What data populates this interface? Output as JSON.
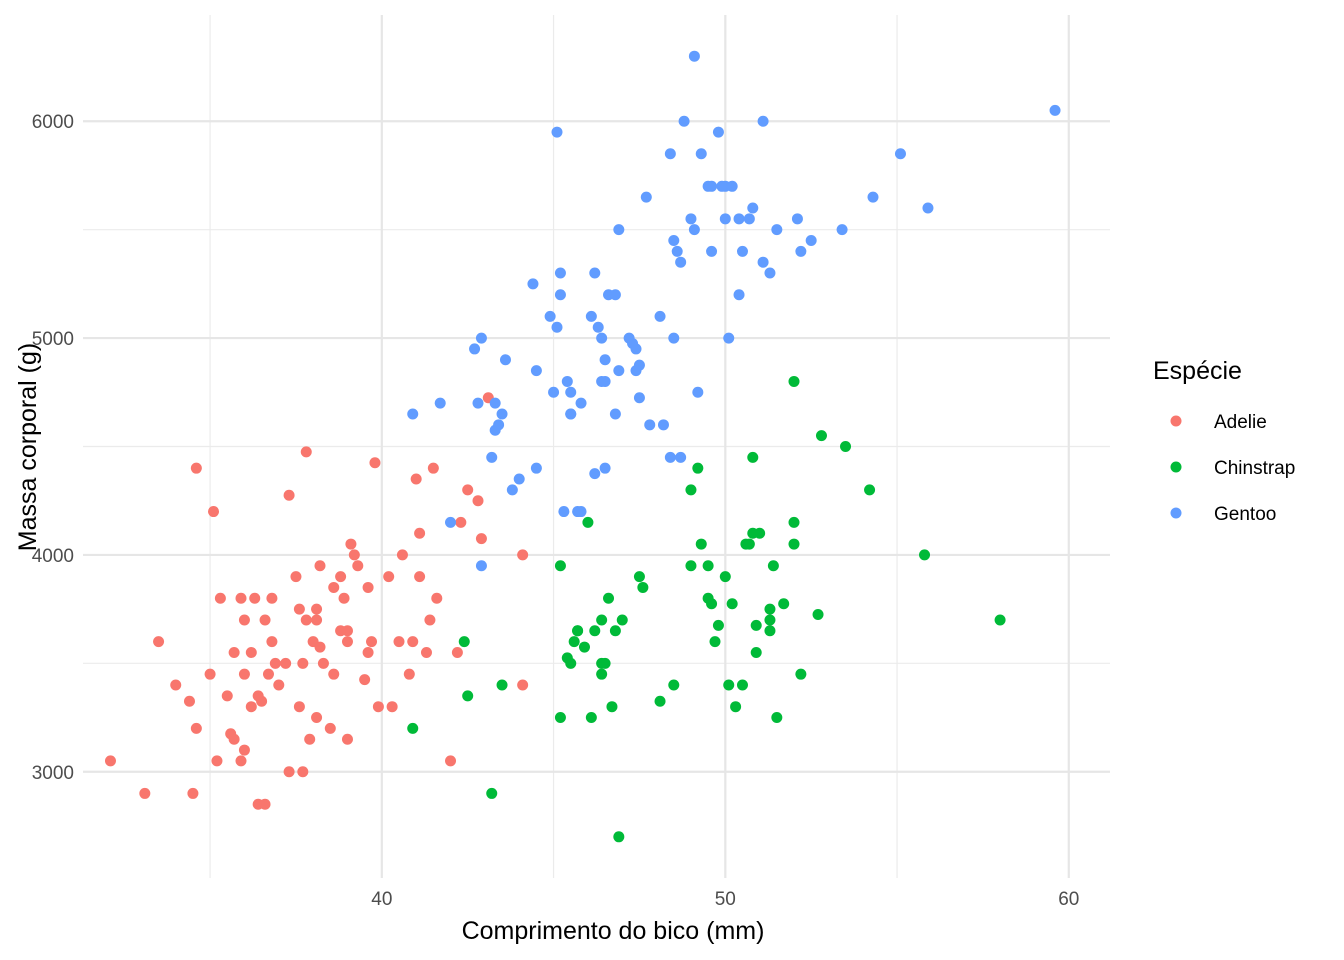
{
  "chart_data": {
    "type": "scatter",
    "title": "",
    "xlabel": "Comprimento do bico (mm)",
    "ylabel": "Massa corporal (g)",
    "xlim": [
      31.3,
      61.2
    ],
    "ylim": [
      2510,
      6490
    ],
    "x_ticks": [
      40,
      50,
      60
    ],
    "y_ticks": [
      3000,
      4000,
      5000,
      6000
    ],
    "grid": true,
    "legend_title": "Espécie",
    "legend_position": "right",
    "series": [
      {
        "name": "Adelie",
        "color": "#F8766D",
        "points": [
          [
            32.1,
            3050
          ],
          [
            33.1,
            2900
          ],
          [
            33.5,
            3600
          ],
          [
            34.0,
            3400
          ],
          [
            34.4,
            3325
          ],
          [
            34.5,
            2900
          ],
          [
            34.6,
            3200
          ],
          [
            34.6,
            4400
          ],
          [
            35.0,
            3450
          ],
          [
            35.1,
            4200
          ],
          [
            35.2,
            3050
          ],
          [
            35.3,
            3800
          ],
          [
            35.5,
            3350
          ],
          [
            35.6,
            3175
          ],
          [
            35.7,
            3550
          ],
          [
            35.7,
            3150
          ],
          [
            35.9,
            3800
          ],
          [
            35.9,
            3050
          ],
          [
            36.0,
            3450
          ],
          [
            36.0,
            3100
          ],
          [
            36.0,
            3700
          ],
          [
            36.2,
            3550
          ],
          [
            36.2,
            3300
          ],
          [
            36.3,
            3800
          ],
          [
            36.4,
            2850
          ],
          [
            36.4,
            3350
          ],
          [
            36.5,
            3325
          ],
          [
            36.6,
            2850
          ],
          [
            36.6,
            3700
          ],
          [
            36.7,
            3450
          ],
          [
            36.8,
            3800
          ],
          [
            36.9,
            3500
          ],
          [
            37.0,
            3400
          ],
          [
            37.2,
            3500
          ],
          [
            37.3,
            3000
          ],
          [
            37.5,
            3900
          ],
          [
            37.6,
            3750
          ],
          [
            37.6,
            3300
          ],
          [
            37.7,
            3000
          ],
          [
            37.8,
            3700
          ],
          [
            37.8,
            4475
          ],
          [
            37.9,
            3150
          ],
          [
            38.0,
            3600
          ],
          [
            38.1,
            3250
          ],
          [
            38.1,
            3750
          ],
          [
            38.1,
            3700
          ],
          [
            38.2,
            3950
          ],
          [
            38.3,
            3500
          ],
          [
            38.5,
            3200
          ],
          [
            38.6,
            3850
          ],
          [
            38.6,
            3450
          ],
          [
            38.8,
            3900
          ],
          [
            38.9,
            3800
          ],
          [
            39.0,
            3150
          ],
          [
            39.0,
            3650
          ],
          [
            39.0,
            3600
          ],
          [
            39.2,
            4000
          ],
          [
            39.3,
            3950
          ],
          [
            39.6,
            3850
          ],
          [
            39.7,
            3600
          ],
          [
            39.8,
            4425
          ],
          [
            39.9,
            3300
          ],
          [
            40.2,
            3900
          ],
          [
            40.5,
            3600
          ],
          [
            40.6,
            4000
          ],
          [
            40.8,
            3450
          ],
          [
            41.0,
            4350
          ],
          [
            41.1,
            3900
          ],
          [
            41.1,
            4100
          ],
          [
            41.3,
            3550
          ],
          [
            41.4,
            3700
          ],
          [
            41.5,
            4400
          ],
          [
            42.0,
            3050
          ],
          [
            42.2,
            3550
          ],
          [
            42.3,
            4150
          ],
          [
            42.5,
            4300
          ],
          [
            42.8,
            4250
          ],
          [
            42.9,
            4075
          ],
          [
            43.1,
            4725
          ],
          [
            44.1,
            4000
          ],
          [
            44.1,
            3400
          ],
          [
            37.7,
            3500
          ],
          [
            38.8,
            3650
          ],
          [
            39.1,
            4050
          ],
          [
            40.3,
            3300
          ],
          [
            39.6,
            3550
          ],
          [
            36.8,
            3600
          ],
          [
            37.3,
            4275
          ],
          [
            40.9,
            3600
          ],
          [
            41.6,
            3800
          ],
          [
            38.2,
            3575
          ],
          [
            39.5,
            3425
          ]
        ]
      },
      {
        "name": "Chinstrap",
        "color": "#00BA38",
        "points": [
          [
            40.9,
            3200
          ],
          [
            42.4,
            3600
          ],
          [
            42.5,
            3350
          ],
          [
            43.2,
            2900
          ],
          [
            43.5,
            3400
          ],
          [
            45.2,
            3950
          ],
          [
            45.2,
            3250
          ],
          [
            45.4,
            3525
          ],
          [
            45.5,
            3500
          ],
          [
            45.6,
            3600
          ],
          [
            45.7,
            3650
          ],
          [
            45.9,
            3575
          ],
          [
            46.0,
            4150
          ],
          [
            46.1,
            3250
          ],
          [
            46.2,
            3650
          ],
          [
            46.4,
            3700
          ],
          [
            46.4,
            3450
          ],
          [
            46.5,
            3500
          ],
          [
            46.6,
            3800
          ],
          [
            46.7,
            3300
          ],
          [
            46.8,
            3650
          ],
          [
            46.9,
            2700
          ],
          [
            47.0,
            3700
          ],
          [
            47.5,
            3900
          ],
          [
            47.6,
            3850
          ],
          [
            48.1,
            3325
          ],
          [
            48.5,
            3400
          ],
          [
            49.0,
            4300
          ],
          [
            49.0,
            3950
          ],
          [
            49.2,
            4400
          ],
          [
            49.3,
            4050
          ],
          [
            49.5,
            3800
          ],
          [
            49.6,
            3775
          ],
          [
            49.7,
            3600
          ],
          [
            49.8,
            3675
          ],
          [
            50.0,
            3900
          ],
          [
            50.1,
            3400
          ],
          [
            50.2,
            3775
          ],
          [
            50.3,
            3300
          ],
          [
            50.5,
            3400
          ],
          [
            50.6,
            4050
          ],
          [
            50.7,
            4050
          ],
          [
            50.8,
            4100
          ],
          [
            50.8,
            4450
          ],
          [
            50.9,
            3550
          ],
          [
            51.0,
            4100
          ],
          [
            51.3,
            3650
          ],
          [
            51.3,
            3700
          ],
          [
            51.4,
            3950
          ],
          [
            51.5,
            3250
          ],
          [
            51.7,
            3775
          ],
          [
            52.0,
            4800
          ],
          [
            52.0,
            4150
          ],
          [
            52.0,
            4050
          ],
          [
            52.2,
            3450
          ],
          [
            52.7,
            3725
          ],
          [
            52.8,
            4550
          ],
          [
            53.5,
            4500
          ],
          [
            54.2,
            4300
          ],
          [
            55.8,
            4000
          ],
          [
            58.0,
            3700
          ],
          [
            45.7,
            3650
          ],
          [
            46.4,
            3500
          ],
          [
            49.5,
            3950
          ],
          [
            51.3,
            3750
          ],
          [
            50.9,
            3675
          ]
        ]
      },
      {
        "name": "Gentoo",
        "color": "#619CFF",
        "points": [
          [
            40.9,
            4650
          ],
          [
            41.7,
            4700
          ],
          [
            42.0,
            4150
          ],
          [
            42.7,
            4950
          ],
          [
            42.8,
            4700
          ],
          [
            42.9,
            5000
          ],
          [
            43.2,
            4450
          ],
          [
            43.3,
            4575
          ],
          [
            43.4,
            4600
          ],
          [
            43.5,
            4650
          ],
          [
            43.6,
            4900
          ],
          [
            43.8,
            4300
          ],
          [
            44.0,
            4350
          ],
          [
            44.4,
            5250
          ],
          [
            44.5,
            4850
          ],
          [
            44.9,
            5100
          ],
          [
            45.0,
            4750
          ],
          [
            45.1,
            5050
          ],
          [
            45.2,
            5300
          ],
          [
            45.2,
            5200
          ],
          [
            45.3,
            4200
          ],
          [
            45.4,
            4800
          ],
          [
            45.5,
            4650
          ],
          [
            45.5,
            4750
          ],
          [
            45.7,
            4200
          ],
          [
            45.8,
            4700
          ],
          [
            46.1,
            5100
          ],
          [
            46.2,
            5300
          ],
          [
            46.3,
            5050
          ],
          [
            46.4,
            5000
          ],
          [
            46.5,
            4900
          ],
          [
            46.5,
            4400
          ],
          [
            46.6,
            5200
          ],
          [
            46.8,
            5200
          ],
          [
            46.8,
            4650
          ],
          [
            46.9,
            5500
          ],
          [
            47.2,
            5000
          ],
          [
            47.3,
            4975
          ],
          [
            47.4,
            4950
          ],
          [
            47.5,
            4875
          ],
          [
            47.7,
            5650
          ],
          [
            48.1,
            5100
          ],
          [
            48.2,
            4600
          ],
          [
            48.4,
            5850
          ],
          [
            48.5,
            5000
          ],
          [
            48.6,
            5400
          ],
          [
            48.7,
            5350
          ],
          [
            48.8,
            6000
          ],
          [
            49.0,
            5550
          ],
          [
            49.1,
            5500
          ],
          [
            49.1,
            6300
          ],
          [
            49.3,
            5850
          ],
          [
            49.5,
            5700
          ],
          [
            49.6,
            5400
          ],
          [
            49.8,
            5950
          ],
          [
            50.0,
            5550
          ],
          [
            50.0,
            5700
          ],
          [
            50.1,
            5000
          ],
          [
            50.4,
            5550
          ],
          [
            50.5,
            5400
          ],
          [
            50.7,
            5550
          ],
          [
            50.8,
            5600
          ],
          [
            51.1,
            6000
          ],
          [
            51.3,
            5300
          ],
          [
            51.5,
            5500
          ],
          [
            52.1,
            5550
          ],
          [
            52.2,
            5400
          ],
          [
            52.5,
            5450
          ],
          [
            53.4,
            5500
          ],
          [
            54.3,
            5650
          ],
          [
            55.1,
            5850
          ],
          [
            55.9,
            5600
          ],
          [
            59.6,
            6050
          ],
          [
            45.1,
            5950
          ],
          [
            46.5,
            4800
          ],
          [
            47.8,
            4600
          ],
          [
            49.2,
            4750
          ],
          [
            43.3,
            4700
          ],
          [
            44.5,
            4400
          ],
          [
            45.8,
            4200
          ],
          [
            47.5,
            4725
          ],
          [
            48.4,
            4450
          ],
          [
            49.9,
            5700
          ],
          [
            50.2,
            5700
          ],
          [
            45.5,
            4650
          ],
          [
            46.2,
            4375
          ],
          [
            48.7,
            4450
          ],
          [
            50.4,
            5200
          ],
          [
            51.1,
            5350
          ],
          [
            42.9,
            3950
          ],
          [
            46.4,
            4800
          ],
          [
            47.4,
            4850
          ],
          [
            48.5,
            5450
          ],
          [
            49.6,
            5700
          ],
          [
            46.9,
            4850
          ]
        ]
      }
    ]
  }
}
